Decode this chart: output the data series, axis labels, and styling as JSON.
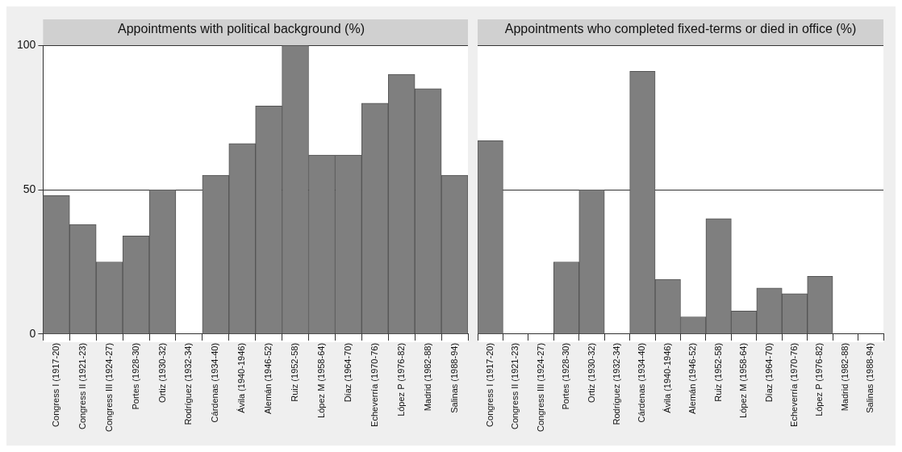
{
  "chart_data": [
    {
      "type": "bar",
      "title": "Appointments with political background (%)",
      "categories": [
        "Congress I (1917-20)",
        "Congress II (1921-23)",
        "Congress III (1924-27)",
        "Portes (1928-30)",
        "Ortiz (1930-32)",
        "Rodríguez (1932-34)",
        "Cárdenas (1934-40)",
        "Ávila (1940-1946)",
        "Alemán (1946-52)",
        "Ruiz (1952-58)",
        "López M (1958-64)",
        "Díaz (1964-70)",
        "Echeverría (1970-76)",
        "López P (1976-82)",
        "Madrid (1982-88)",
        "Salinas (1988-94)"
      ],
      "values": [
        48,
        38,
        25,
        34,
        50,
        0,
        55,
        66,
        79,
        100,
        62,
        62,
        80,
        90,
        85,
        55
      ],
      "color": "#7f7f7f",
      "ylim": [
        0,
        100
      ],
      "yticks": [
        0,
        50,
        100
      ],
      "grid": "y"
    },
    {
      "type": "bar",
      "title": "Appointments who completed fixed-terms or died in office (%)",
      "categories": [
        "Congress I (1917-20)",
        "Congress II (1921-23)",
        "Congress III (1924-27)",
        "Portes (1928-30)",
        "Ortiz (1930-32)",
        "Rodríguez (1932-34)",
        "Cárdenas (1934-40)",
        "Ávila (1940-1946)",
        "Alemán (1946-52)",
        "Ruiz (1952-58)",
        "López M (1958-64)",
        "Díaz (1964-70)",
        "Echeverría (1970-76)",
        "López P (1976-82)",
        "Madrid (1982-88)",
        "Salinas (1988-94)"
      ],
      "values": [
        67,
        0,
        0,
        25,
        50,
        0,
        91,
        19,
        6,
        40,
        8,
        16,
        14,
        20,
        0,
        0
      ],
      "color": "#7f7f7f",
      "ylim": [
        0,
        100
      ],
      "yticks": [
        0,
        50,
        100
      ],
      "grid": "y",
      "tick_labels": "x"
    }
  ]
}
